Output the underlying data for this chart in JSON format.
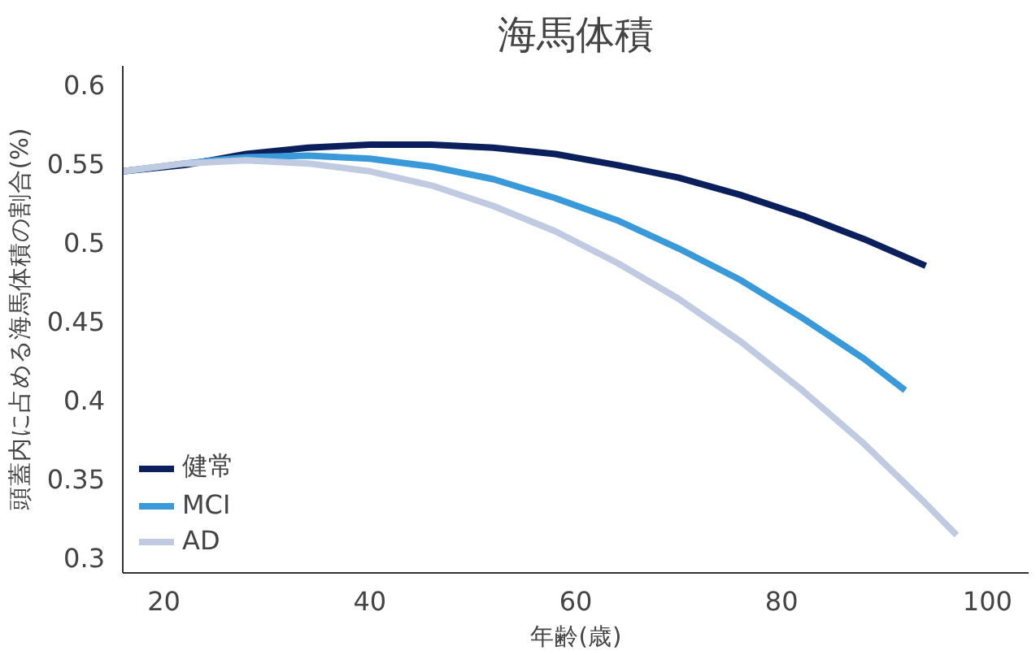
{
  "chart_data": {
    "type": "line",
    "title": "海馬体積",
    "xlabel": "年齢(歳)",
    "ylabel": "頭蓋内に占める海馬体積の割合(%)",
    "xlim": [
      16,
      104
    ],
    "ylim": [
      0.29,
      0.612
    ],
    "xticks": [
      20,
      40,
      60,
      80,
      100
    ],
    "yticks": [
      0.3,
      0.35,
      0.4,
      0.45,
      0.5,
      0.55,
      0.6
    ],
    "grid": false,
    "legend": "bottom left",
    "marker": "none",
    "line_style": "solid",
    "series": [
      {
        "name": "健常",
        "color": "#0b1f5c",
        "x": [
          16,
          22,
          28,
          34,
          40,
          46,
          52,
          58,
          64,
          70,
          76,
          82,
          88,
          94
        ],
        "values": [
          0.545,
          0.549,
          0.556,
          0.56,
          0.562,
          0.562,
          0.56,
          0.556,
          0.549,
          0.541,
          0.53,
          0.517,
          0.502,
          0.485
        ]
      },
      {
        "name": "MCI",
        "color": "#3a9ad9",
        "x": [
          16,
          22,
          28,
          34,
          40,
          46,
          52,
          58,
          64,
          70,
          76,
          82,
          88,
          92
        ],
        "values": [
          0.545,
          0.55,
          0.554,
          0.555,
          0.553,
          0.548,
          0.54,
          0.528,
          0.514,
          0.496,
          0.476,
          0.452,
          0.426,
          0.406
        ]
      },
      {
        "name": "AD",
        "color": "#c0cbe2",
        "x": [
          16,
          22,
          28,
          34,
          40,
          46,
          52,
          58,
          64,
          70,
          76,
          82,
          88,
          94,
          97
        ],
        "values": [
          0.545,
          0.55,
          0.552,
          0.55,
          0.545,
          0.536,
          0.523,
          0.507,
          0.487,
          0.464,
          0.437,
          0.406,
          0.372,
          0.334,
          0.314
        ]
      }
    ]
  }
}
